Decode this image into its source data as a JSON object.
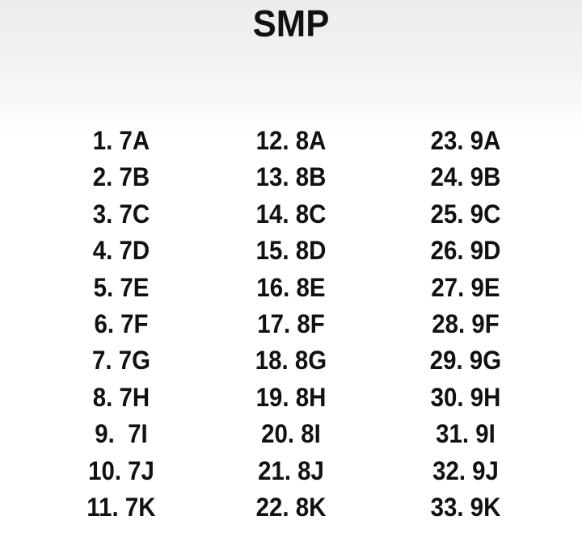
{
  "title": "SMP",
  "columns": [
    [
      "1. 7A",
      "2. 7B",
      "3. 7C",
      "4. 7D",
      "5. 7E",
      "6. 7F",
      "7. 7G",
      "8. 7H",
      "9.  7I",
      "10. 7J",
      "11. 7K"
    ],
    [
      "12. 8A",
      "13. 8B",
      "14. 8C",
      "15. 8D",
      "16. 8E",
      "17. 8F",
      "18. 8G",
      "19. 8H",
      "20. 8I",
      "21. 8J",
      "22. 8K"
    ],
    [
      "23. 9A",
      "24. 9B",
      "25. 9C",
      "26. 9D",
      "27. 9E",
      "28. 9F",
      "29. 9G",
      "30. 9H",
      "31. 9I",
      "32. 9J",
      "33. 9K"
    ]
  ]
}
